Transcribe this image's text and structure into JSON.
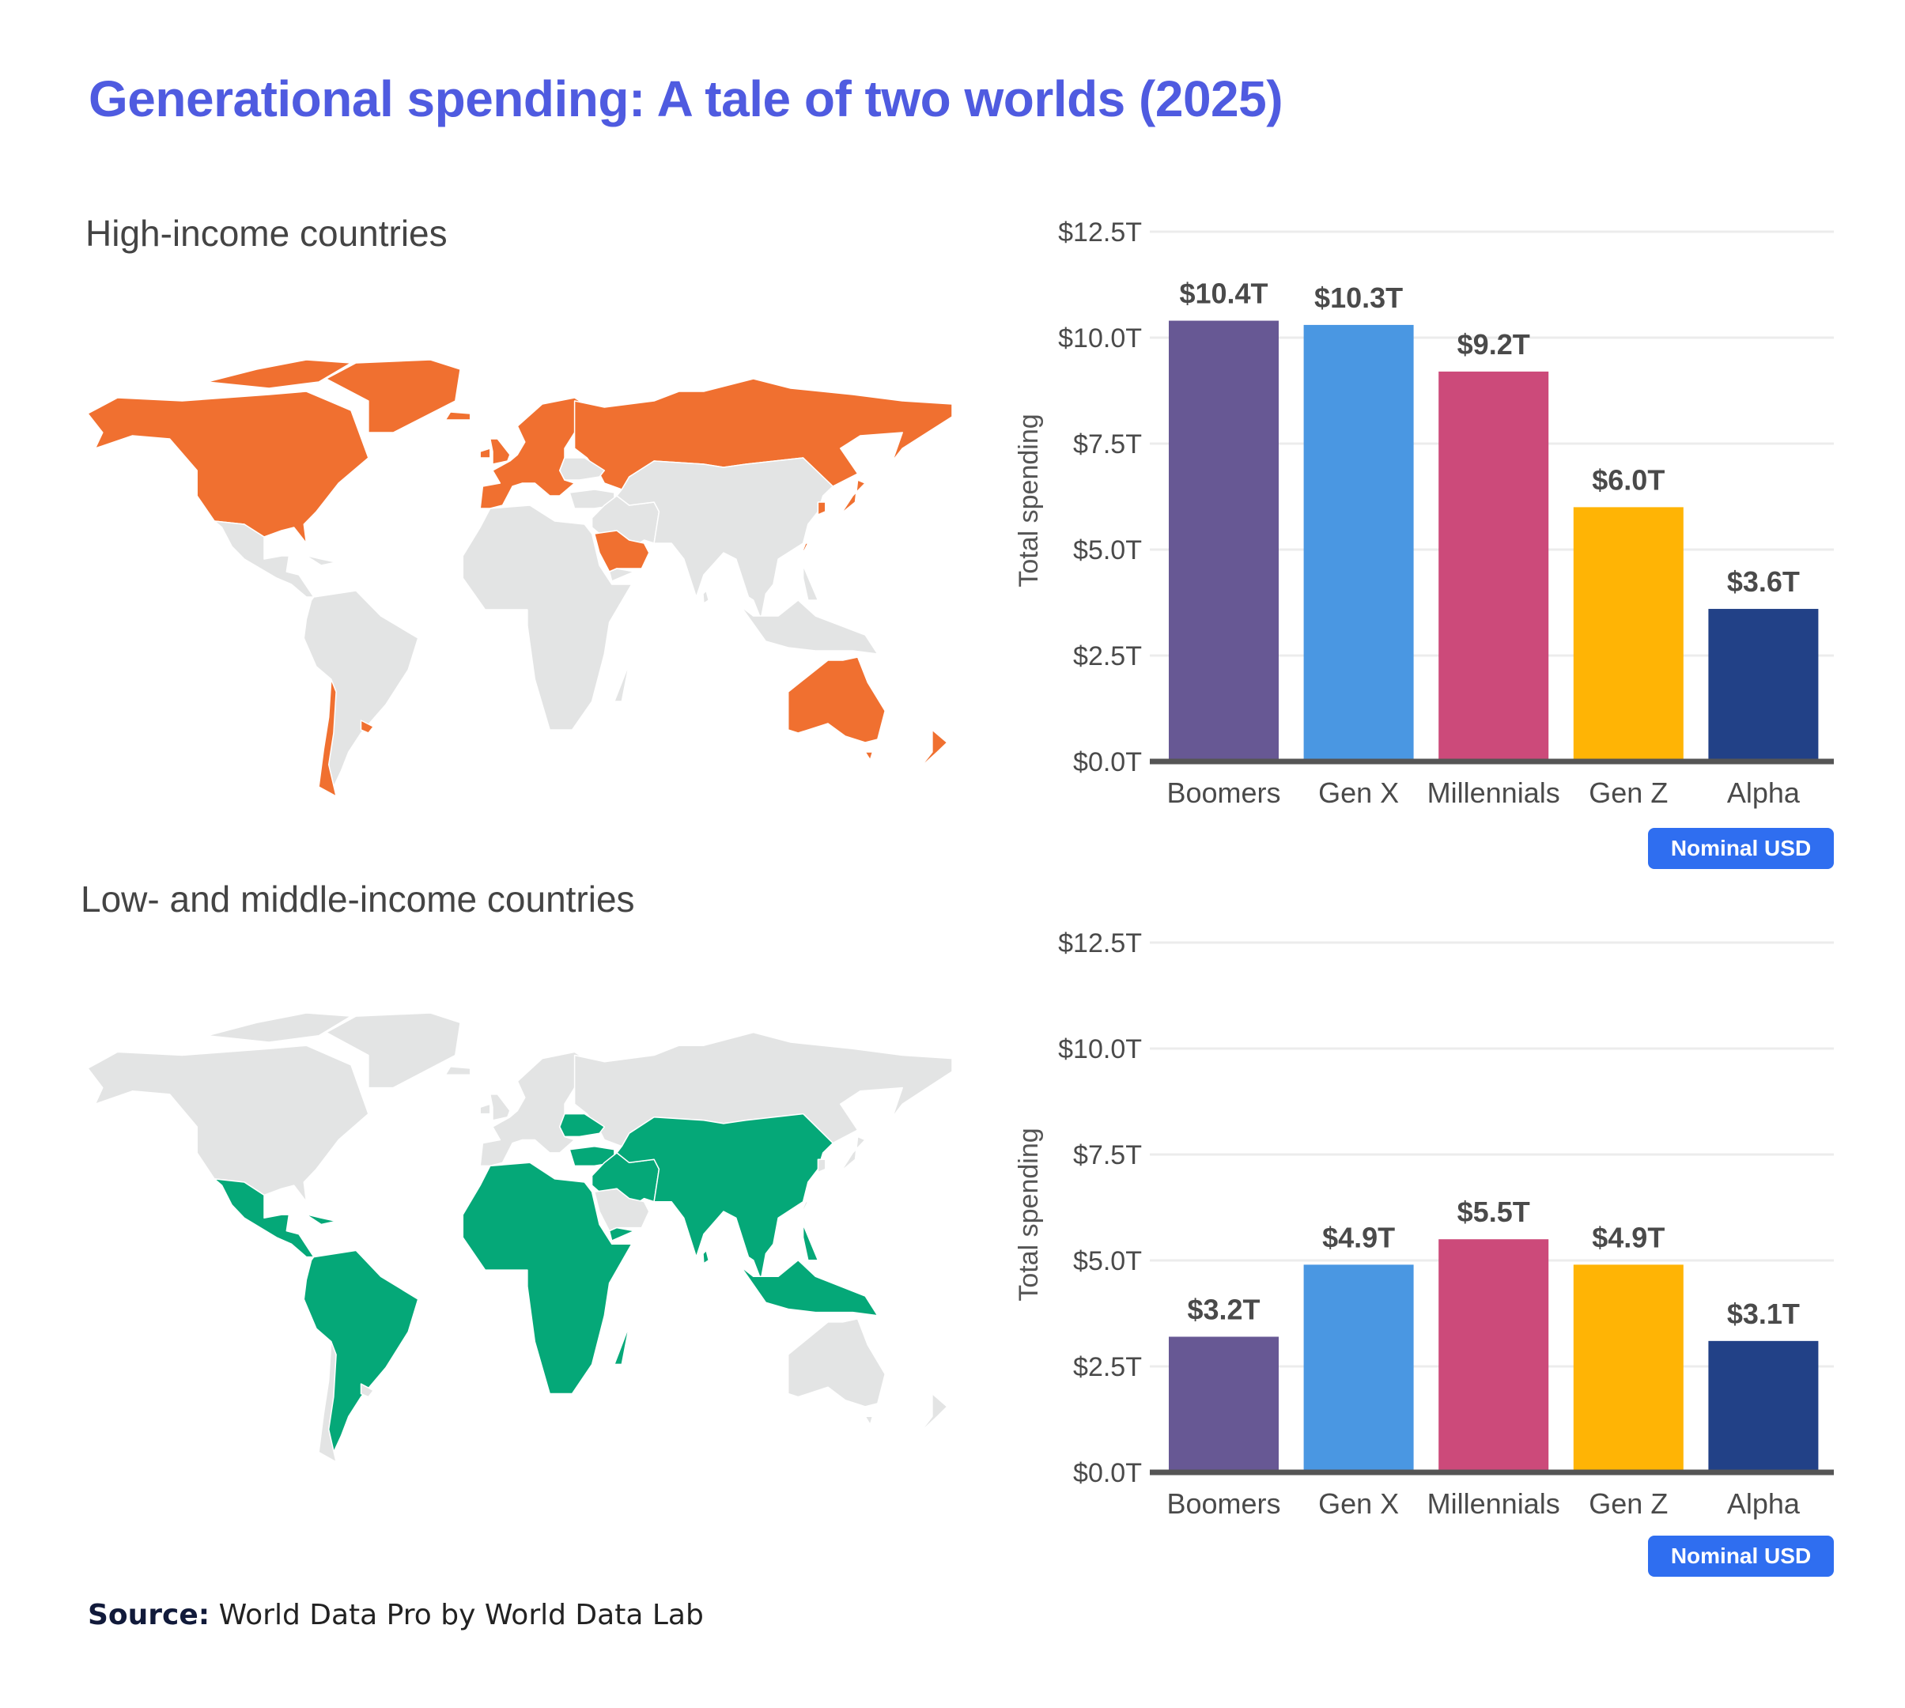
{
  "title": "Generational spending: A tale of two worlds (2025)",
  "source_label": "Source:",
  "source_text": "World Data Pro by World Data Lab",
  "colors": {
    "title": "#4f5be0",
    "high_income": "#f07030",
    "low_middle_income": "#05a878",
    "neutral_land": "#e3e4e4",
    "badge": "#2f6ef0"
  },
  "maps": [
    {
      "subtitle": "High-income countries",
      "highlight": "high"
    },
    {
      "subtitle": "Low- and middle-income countries",
      "highlight": "low"
    }
  ],
  "chart_data": [
    {
      "type": "bar",
      "title": "",
      "ylabel": "Total spending",
      "xlabel": "",
      "ylim": [
        0,
        12.5
      ],
      "yticks": [
        "$0.0T",
        "$2.5T",
        "$5.0T",
        "$7.5T",
        "$10.0T",
        "$12.5T"
      ],
      "grid": true,
      "categories": [
        "Boomers",
        "Gen X",
        "Millennials",
        "Gen Z",
        "Alpha"
      ],
      "values": [
        10.4,
        10.3,
        9.2,
        6.0,
        3.6
      ],
      "labels": [
        "$10.4T",
        "$10.3T",
        "$9.2T",
        "$6.0T",
        "$3.6T"
      ],
      "bar_colors": [
        "#675894",
        "#4a97e2",
        "#cc4a7a",
        "#ffb405",
        "#224187"
      ],
      "badge": "Nominal USD"
    },
    {
      "type": "bar",
      "title": "",
      "ylabel": "Total spending",
      "xlabel": "",
      "ylim": [
        0,
        12.5
      ],
      "yticks": [
        "$0.0T",
        "$2.5T",
        "$5.0T",
        "$7.5T",
        "$10.0T",
        "$12.5T"
      ],
      "grid": true,
      "categories": [
        "Boomers",
        "Gen X",
        "Millennials",
        "Gen Z",
        "Alpha"
      ],
      "values": [
        3.2,
        4.9,
        5.5,
        4.9,
        3.1
      ],
      "labels": [
        "$3.2T",
        "$4.9T",
        "$5.5T",
        "$4.9T",
        "$3.1T"
      ],
      "bar_colors": [
        "#675894",
        "#4a97e2",
        "#cc4a7a",
        "#ffb405",
        "#224187"
      ],
      "badge": "Nominal USD"
    }
  ]
}
